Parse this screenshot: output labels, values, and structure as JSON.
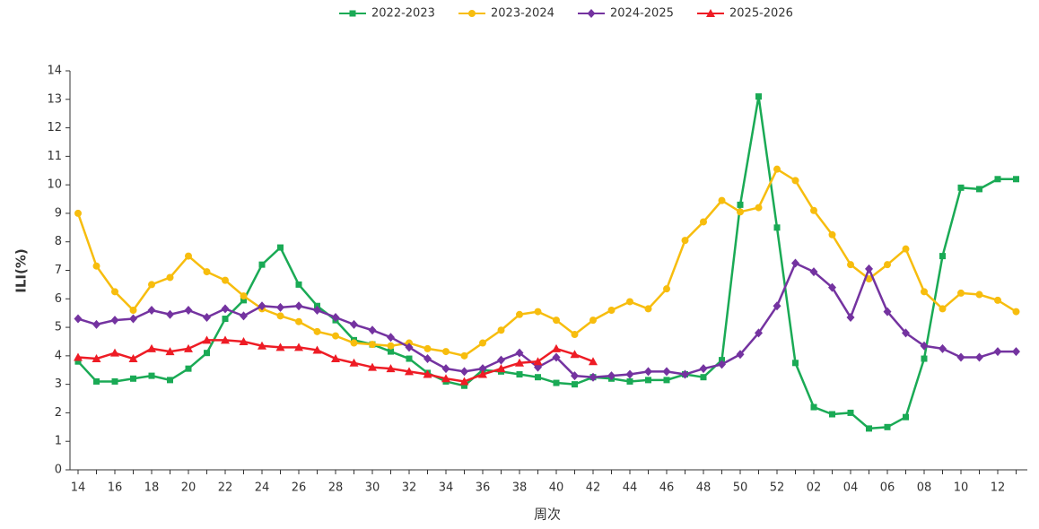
{
  "chart_data": {
    "type": "line",
    "x_label": "周次",
    "y_label": "ILI(%)",
    "categories": [
      "14",
      null,
      "16",
      null,
      "18",
      null,
      "20",
      null,
      "22",
      null,
      "24",
      null,
      "26",
      null,
      "28",
      null,
      "30",
      null,
      "32",
      null,
      "34",
      null,
      "36",
      null,
      "38",
      null,
      "40",
      null,
      "42",
      null,
      "44",
      null,
      "46",
      null,
      "48",
      null,
      "50",
      null,
      "52",
      null,
      "02",
      null,
      "04",
      null,
      "06",
      null,
      "08",
      null,
      "10",
      null,
      "12",
      null
    ],
    "ylim": [
      0,
      14
    ],
    "yticks": [
      0,
      1,
      2,
      3,
      4,
      5,
      6,
      7,
      8,
      9,
      10,
      11,
      12,
      13,
      14
    ],
    "legend": "top",
    "series": [
      {
        "name": "2022-2023",
        "color": "#1aaa55",
        "marker": "square",
        "values": [
          3.8,
          3.1,
          3.1,
          3.2,
          3.3,
          3.15,
          3.55,
          4.1,
          5.3,
          5.95,
          7.2,
          7.8,
          6.5,
          5.75,
          5.25,
          4.55,
          4.4,
          4.15,
          3.9,
          3.4,
          3.1,
          2.95,
          3.5,
          3.45,
          3.35,
          3.25,
          3.05,
          3.0,
          3.25,
          3.2,
          3.1,
          3.15,
          3.15,
          3.35,
          3.25,
          3.85,
          9.3,
          13.1,
          8.5,
          3.75,
          2.2,
          1.95,
          2.0,
          1.45,
          1.5,
          1.85,
          3.9,
          7.5,
          9.9,
          9.85,
          10.2,
          10.2
        ]
      },
      {
        "name": "2023-2024",
        "color": "#f7bd0e",
        "marker": "circle",
        "values": [
          9.0,
          7.15,
          6.25,
          5.6,
          6.5,
          6.75,
          7.5,
          6.95,
          6.65,
          6.1,
          5.65,
          5.4,
          5.2,
          4.85,
          4.7,
          4.45,
          4.4,
          4.35,
          4.45,
          4.25,
          4.15,
          4.0,
          4.45,
          4.9,
          5.45,
          5.55,
          5.25,
          4.75,
          5.25,
          5.6,
          5.9,
          5.65,
          6.35,
          8.05,
          8.7,
          9.45,
          9.05,
          9.2,
          10.55,
          10.15,
          9.1,
          8.25,
          7.2,
          6.7,
          7.2,
          7.75,
          6.25,
          5.65,
          6.2,
          6.15,
          5.95,
          5.55
        ]
      },
      {
        "name": "2024-2025",
        "color": "#7433a0",
        "marker": "diamond",
        "values": [
          5.3,
          5.1,
          5.25,
          5.3,
          5.6,
          5.45,
          5.6,
          5.35,
          5.65,
          5.4,
          5.75,
          5.7,
          5.75,
          5.6,
          5.35,
          5.1,
          4.9,
          4.65,
          4.3,
          3.9,
          3.55,
          3.45,
          3.55,
          3.85,
          4.1,
          3.6,
          3.95,
          3.3,
          3.25,
          3.3,
          3.35,
          3.45,
          3.45,
          3.35,
          3.55,
          3.7,
          4.05,
          4.8,
          5.75,
          7.25,
          6.95,
          6.4,
          5.35,
          7.05,
          5.55,
          4.8,
          4.35,
          4.25,
          3.95,
          3.95,
          4.15,
          4.15
        ]
      },
      {
        "name": "2025-2026",
        "color": "#ee1c25",
        "marker": "triangle",
        "values": [
          3.95,
          3.9,
          4.1,
          3.9,
          4.25,
          4.15,
          4.25,
          4.55,
          4.55,
          4.5,
          4.35,
          4.3,
          4.3,
          4.2,
          3.9,
          3.75,
          3.6,
          3.55,
          3.45,
          3.35,
          3.2,
          3.1,
          3.35,
          3.55,
          3.75,
          3.8,
          4.25,
          4.05,
          3.8,
          null,
          null,
          null,
          null,
          null,
          null,
          null,
          null,
          null,
          null,
          null,
          null,
          null,
          null,
          null,
          null,
          null,
          null,
          null,
          null,
          null,
          null,
          null
        ]
      }
    ]
  }
}
